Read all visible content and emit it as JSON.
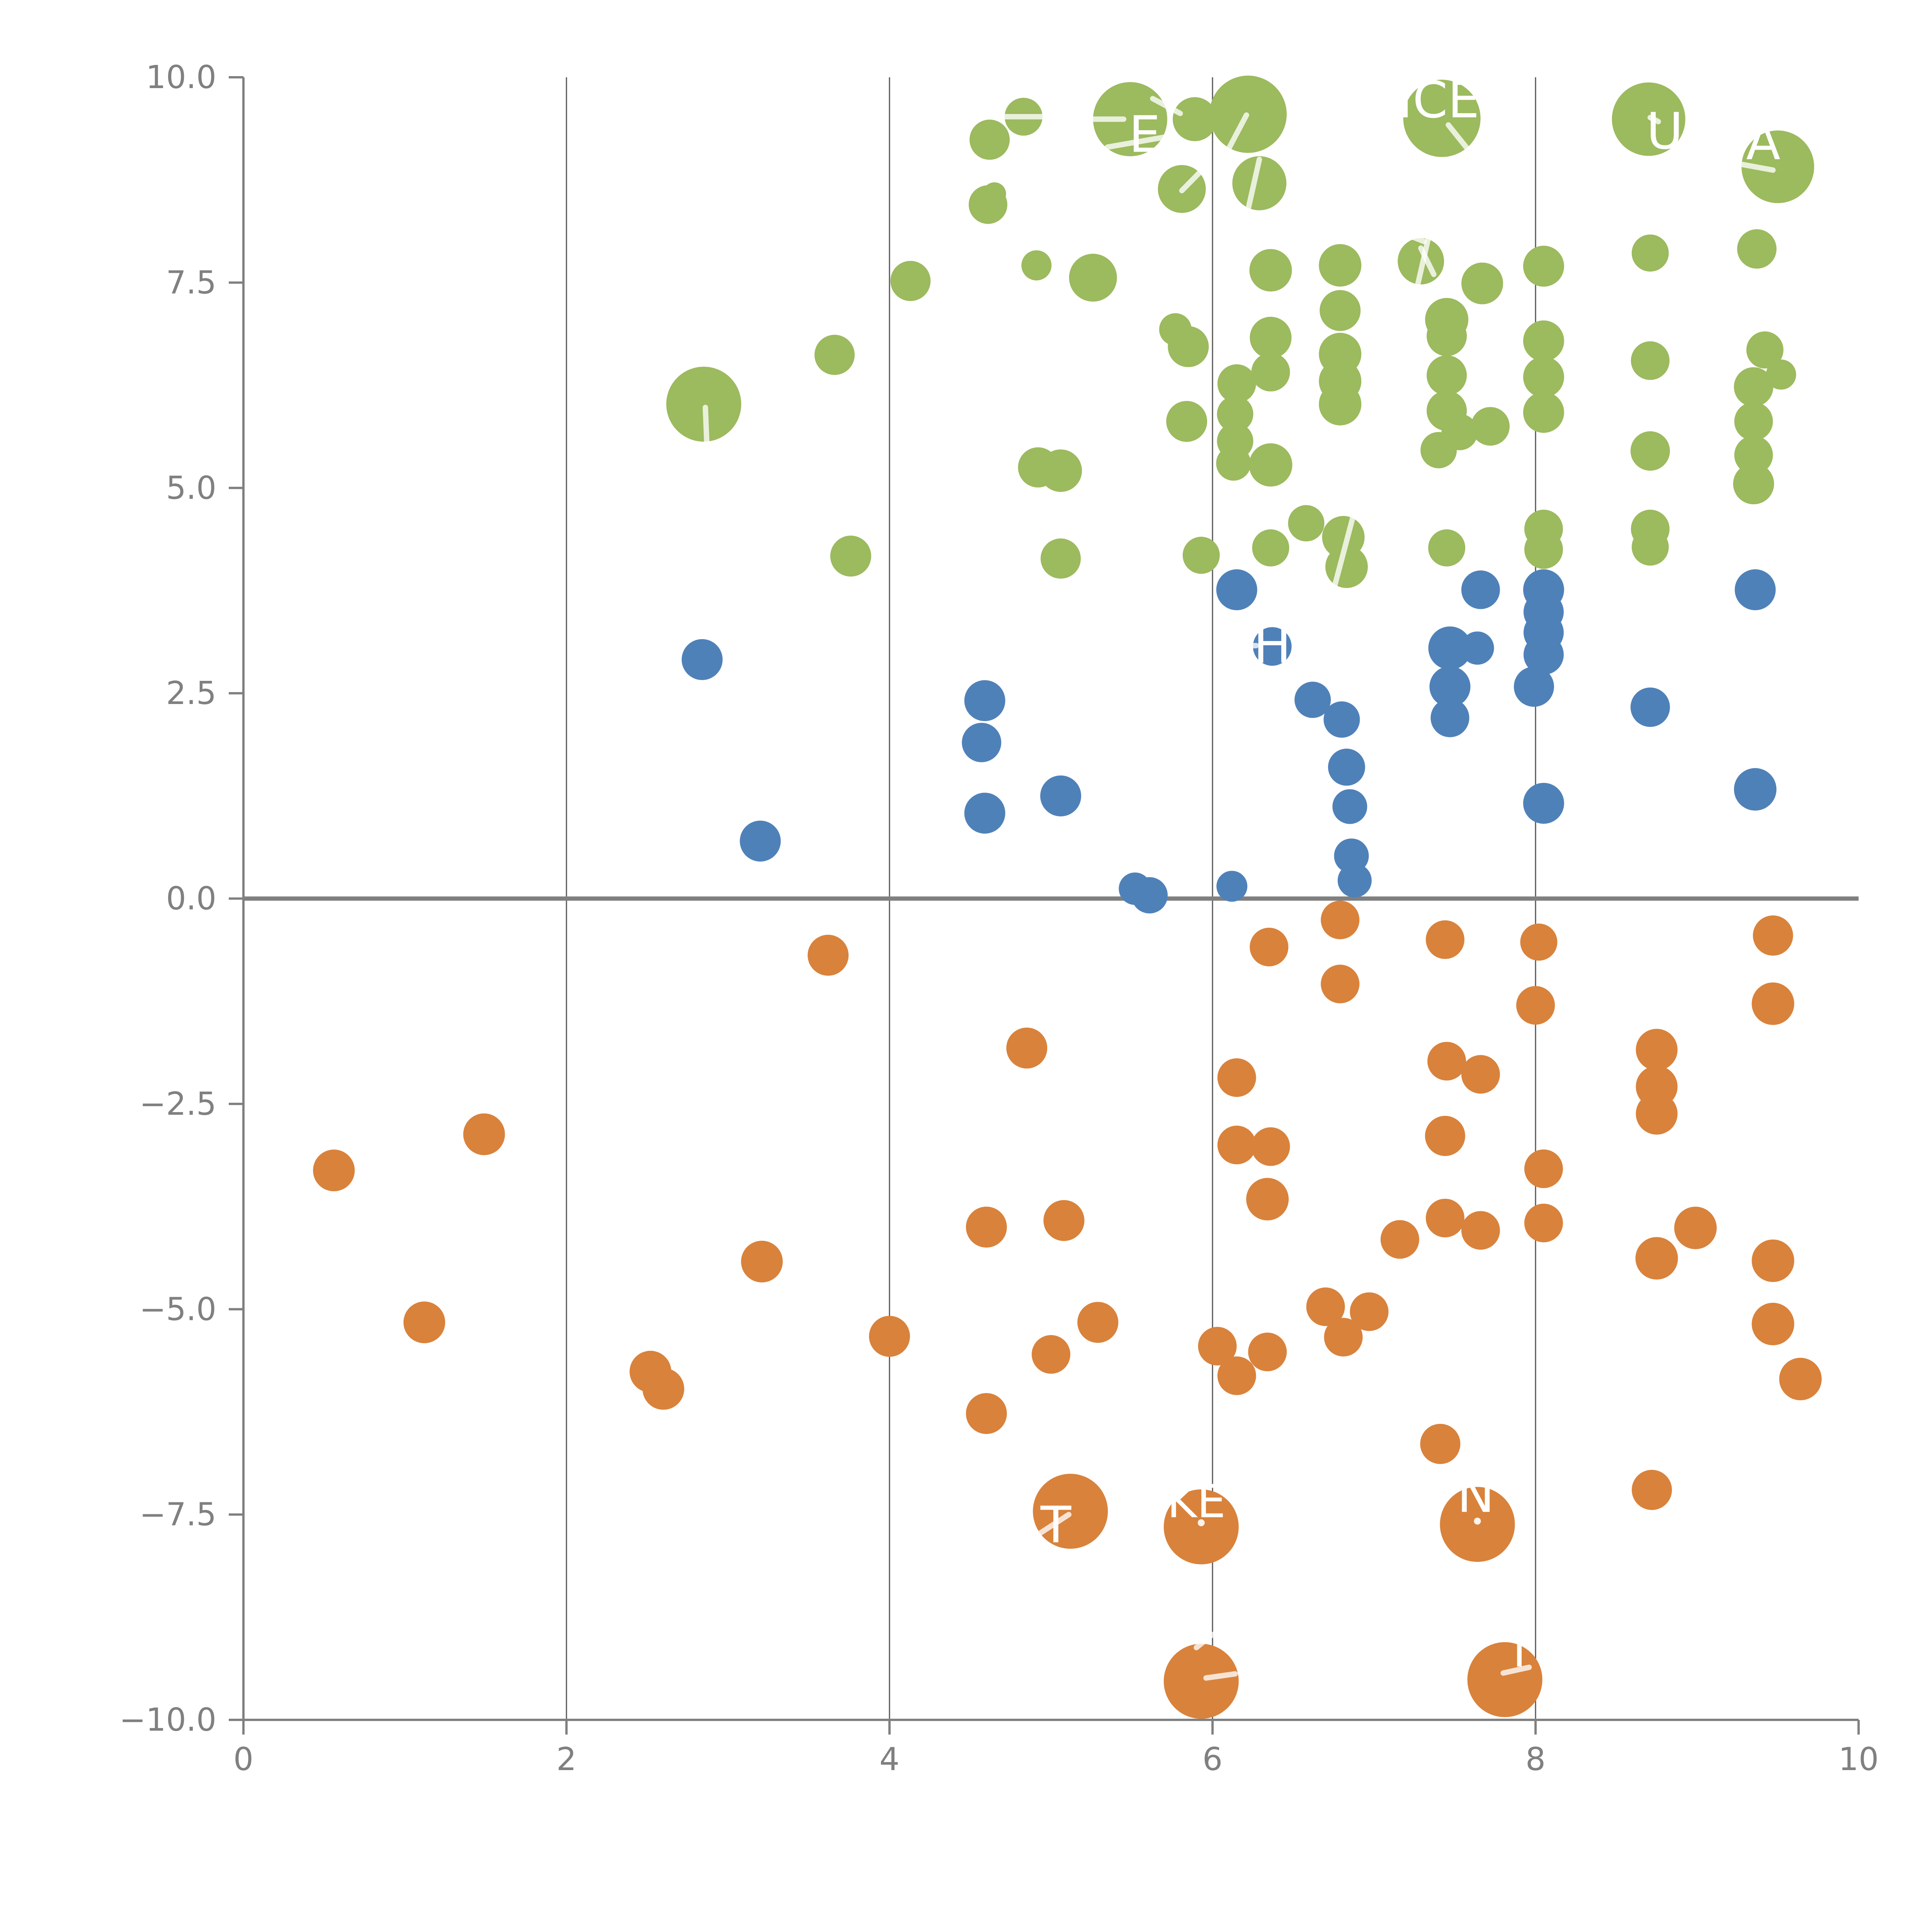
{
  "chart_data": {
    "type": "scatter",
    "title": "",
    "xlabel": "",
    "ylabel": "",
    "xlim": [
      0,
      10
    ],
    "ylim": [
      -10,
      10
    ],
    "x_ticks": [
      0,
      2,
      4,
      6,
      8,
      10
    ],
    "x_tick_labels": [
      "0",
      "2",
      "4",
      "6",
      "8",
      "10"
    ],
    "y_ticks": [
      10.0,
      7.5,
      5.0,
      2.5,
      0.0,
      -2.5,
      -5.0,
      -7.5,
      -10.0
    ],
    "y_tick_labels": [
      "10.0",
      "7.5",
      "5.0",
      "2.5",
      "0.0",
      "−2.5",
      "−5.0",
      "−7.5",
      "−10.0"
    ],
    "grid_x": [
      2,
      4,
      6,
      8
    ],
    "zero_line_y": 0,
    "legend_position": "none",
    "colors": {
      "green": "#9CBA5E",
      "blue": "#4F81B9",
      "orange": "#D9823B",
      "axis": "#808080",
      "grid": "#555555",
      "label_white": "#ffffff"
    },
    "series": [
      {
        "name": "green",
        "color": "#9CBA5E",
        "points": [
          {
            "x": 2.85,
            "y": 6.02,
            "r": 97
          },
          {
            "x": 3.66,
            "y": 6.62,
            "r": 52
          },
          {
            "x": 3.76,
            "y": 4.17,
            "r": 53
          },
          {
            "x": 4.13,
            "y": 7.52,
            "r": 52
          },
          {
            "x": 4.61,
            "y": 8.45,
            "r": 50
          },
          {
            "x": 4.62,
            "y": 9.24,
            "r": 52
          },
          {
            "x": 4.83,
            "y": 9.52,
            "r": 49
          },
          {
            "x": 4.65,
            "y": 8.58,
            "r": 30
          },
          {
            "x": 4.91,
            "y": 7.71,
            "r": 39
          },
          {
            "x": 5.26,
            "y": 7.56,
            "r": 62
          },
          {
            "x": 4.92,
            "y": 5.25,
            "r": 52
          },
          {
            "x": 5.06,
            "y": 5.21,
            "r": 55
          },
          {
            "x": 5.06,
            "y": 4.14,
            "r": 52
          },
          {
            "x": 5.49,
            "y": 9.49,
            "r": 96
          },
          {
            "x": 5.89,
            "y": 9.49,
            "r": 57
          },
          {
            "x": 5.81,
            "y": 8.64,
            "r": 62
          },
          {
            "x": 5.77,
            "y": 6.93,
            "r": 42
          },
          {
            "x": 5.84,
            "y": 5.81,
            "r": 53
          },
          {
            "x": 5.85,
            "y": 6.72,
            "r": 53
          },
          {
            "x": 5.93,
            "y": 4.18,
            "r": 48
          },
          {
            "x": 6.22,
            "y": 9.55,
            "r": 100
          },
          {
            "x": 6.29,
            "y": 8.71,
            "r": 70
          },
          {
            "x": 6.13,
            "y": 5.3,
            "r": 45
          },
          {
            "x": 6.14,
            "y": 5.9,
            "r": 47
          },
          {
            "x": 6.14,
            "y": 5.57,
            "r": 47
          },
          {
            "x": 6.15,
            "y": 6.27,
            "r": 50
          },
          {
            "x": 6.36,
            "y": 7.65,
            "r": 55
          },
          {
            "x": 6.36,
            "y": 6.83,
            "r": 54
          },
          {
            "x": 6.36,
            "y": 6.41,
            "r": 50
          },
          {
            "x": 6.36,
            "y": 5.28,
            "r": 56
          },
          {
            "x": 6.36,
            "y": 4.27,
            "r": 48
          },
          {
            "x": 6.58,
            "y": 4.57,
            "r": 47
          },
          {
            "x": 6.79,
            "y": 7.71,
            "r": 55
          },
          {
            "x": 6.79,
            "y": 7.16,
            "r": 53
          },
          {
            "x": 6.79,
            "y": 6.63,
            "r": 55
          },
          {
            "x": 6.79,
            "y": 6.3,
            "r": 55
          },
          {
            "x": 6.79,
            "y": 6.02,
            "r": 55
          },
          {
            "x": 6.81,
            "y": 4.4,
            "r": 55
          },
          {
            "x": 6.83,
            "y": 4.04,
            "r": 55
          },
          {
            "x": 7.29,
            "y": 7.76,
            "r": 60
          },
          {
            "x": 7.42,
            "y": 9.5,
            "r": 100
          },
          {
            "x": 7.45,
            "y": 7.05,
            "r": 56
          },
          {
            "x": 7.45,
            "y": 6.85,
            "r": 52
          },
          {
            "x": 7.45,
            "y": 6.37,
            "r": 52
          },
          {
            "x": 7.45,
            "y": 5.94,
            "r": 52
          },
          {
            "x": 7.45,
            "y": 4.27,
            "r": 48
          },
          {
            "x": 7.4,
            "y": 5.46,
            "r": 47
          },
          {
            "x": 7.53,
            "y": 5.68,
            "r": 47
          },
          {
            "x": 7.67,
            "y": 7.49,
            "r": 54
          },
          {
            "x": 7.72,
            "y": 5.75,
            "r": 50
          },
          {
            "x": 8.05,
            "y": 7.7,
            "r": 53
          },
          {
            "x": 8.05,
            "y": 6.79,
            "r": 53
          },
          {
            "x": 8.05,
            "y": 6.35,
            "r": 53
          },
          {
            "x": 8.05,
            "y": 5.92,
            "r": 53
          },
          {
            "x": 8.05,
            "y": 4.5,
            "r": 50
          },
          {
            "x": 8.05,
            "y": 4.25,
            "r": 50
          },
          {
            "x": 8.7,
            "y": 9.49,
            "r": 95
          },
          {
            "x": 8.71,
            "y": 7.86,
            "r": 48
          },
          {
            "x": 8.71,
            "y": 6.55,
            "r": 50
          },
          {
            "x": 8.71,
            "y": 5.45,
            "r": 51
          },
          {
            "x": 8.71,
            "y": 4.5,
            "r": 50
          },
          {
            "x": 8.71,
            "y": 4.28,
            "r": 48
          },
          {
            "x": 9.37,
            "y": 7.91,
            "r": 51
          },
          {
            "x": 9.42,
            "y": 6.68,
            "r": 48
          },
          {
            "x": 9.35,
            "y": 6.23,
            "r": 51
          },
          {
            "x": 9.35,
            "y": 5.81,
            "r": 50
          },
          {
            "x": 9.35,
            "y": 5.4,
            "r": 50
          },
          {
            "x": 9.35,
            "y": 5.05,
            "r": 53
          },
          {
            "x": 9.52,
            "y": 6.38,
            "r": 39
          },
          {
            "x": 9.5,
            "y": 8.91,
            "r": 94
          }
        ]
      },
      {
        "name": "blue",
        "color": "#4F81B9",
        "points": [
          {
            "x": 2.84,
            "y": 2.91,
            "r": 53
          },
          {
            "x": 3.2,
            "y": 0.7,
            "r": 53
          },
          {
            "x": 4.59,
            "y": 2.41,
            "r": 53
          },
          {
            "x": 4.57,
            "y": 1.9,
            "r": 51
          },
          {
            "x": 4.59,
            "y": 1.04,
            "r": 53
          },
          {
            "x": 5.06,
            "y": 1.25,
            "r": 53
          },
          {
            "x": 5.52,
            "y": 0.12,
            "r": 42
          },
          {
            "x": 5.61,
            "y": 0.04,
            "r": 47
          },
          {
            "x": 6.12,
            "y": 0.15,
            "r": 40
          },
          {
            "x": 6.15,
            "y": 3.76,
            "r": 53
          },
          {
            "x": 6.37,
            "y": 3.07,
            "r": 50
          },
          {
            "x": 6.62,
            "y": 2.42,
            "r": 47
          },
          {
            "x": 6.8,
            "y": 2.18,
            "r": 47
          },
          {
            "x": 6.83,
            "y": 1.6,
            "r": 48
          },
          {
            "x": 6.85,
            "y": 1.12,
            "r": 45
          },
          {
            "x": 6.86,
            "y": 0.52,
            "r": 45
          },
          {
            "x": 6.88,
            "y": 0.22,
            "r": 44
          },
          {
            "x": 7.47,
            "y": 3.05,
            "r": 56
          },
          {
            "x": 7.64,
            "y": 3.05,
            "r": 43
          },
          {
            "x": 7.66,
            "y": 3.76,
            "r": 50
          },
          {
            "x": 7.47,
            "y": 2.58,
            "r": 53
          },
          {
            "x": 7.47,
            "y": 2.2,
            "r": 50
          },
          {
            "x": 8.05,
            "y": 3.76,
            "r": 53
          },
          {
            "x": 8.05,
            "y": 3.49,
            "r": 52
          },
          {
            "x": 8.05,
            "y": 3.24,
            "r": 52
          },
          {
            "x": 8.05,
            "y": 2.97,
            "r": 52
          },
          {
            "x": 7.99,
            "y": 2.58,
            "r": 52
          },
          {
            "x": 8.05,
            "y": 1.16,
            "r": 53
          },
          {
            "x": 8.71,
            "y": 2.33,
            "r": 51
          },
          {
            "x": 9.36,
            "y": 3.76,
            "r": 53
          },
          {
            "x": 9.36,
            "y": 1.33,
            "r": 55
          }
        ]
      },
      {
        "name": "orange",
        "color": "#D9823B",
        "points": [
          {
            "x": 0.56,
            "y": -3.31,
            "r": 54
          },
          {
            "x": 1.12,
            "y": -5.16,
            "r": 54
          },
          {
            "x": 1.49,
            "y": -2.87,
            "r": 54
          },
          {
            "x": 2.52,
            "y": -5.76,
            "r": 54
          },
          {
            "x": 2.6,
            "y": -5.97,
            "r": 54
          },
          {
            "x": 3.21,
            "y": -4.42,
            "r": 54
          },
          {
            "x": 3.62,
            "y": -0.69,
            "r": 53
          },
          {
            "x": 4.0,
            "y": -5.33,
            "r": 53
          },
          {
            "x": 4.6,
            "y": -6.27,
            "r": 53
          },
          {
            "x": 4.6,
            "y": -4.0,
            "r": 53
          },
          {
            "x": 4.85,
            "y": -1.82,
            "r": 53
          },
          {
            "x": 5.08,
            "y": -3.92,
            "r": 53
          },
          {
            "x": 5.0,
            "y": -5.55,
            "r": 50
          },
          {
            "x": 5.12,
            "y": -7.46,
            "r": 97
          },
          {
            "x": 5.29,
            "y": -5.16,
            "r": 53
          },
          {
            "x": 5.93,
            "y": -7.65,
            "r": 97
          },
          {
            "x": 5.93,
            "y": -9.53,
            "r": 97
          },
          {
            "x": 6.03,
            "y": -5.45,
            "r": 50
          },
          {
            "x": 6.15,
            "y": -5.81,
            "r": 50
          },
          {
            "x": 6.34,
            "y": -5.52,
            "r": 50
          },
          {
            "x": 6.15,
            "y": -2.18,
            "r": 50
          },
          {
            "x": 6.15,
            "y": -3.0,
            "r": 50
          },
          {
            "x": 6.36,
            "y": -3.02,
            "r": 50
          },
          {
            "x": 6.34,
            "y": -3.66,
            "r": 55
          },
          {
            "x": 6.35,
            "y": -0.59,
            "r": 50
          },
          {
            "x": 6.7,
            "y": -4.97,
            "r": 50
          },
          {
            "x": 6.81,
            "y": -5.34,
            "r": 50
          },
          {
            "x": 6.97,
            "y": -5.03,
            "r": 50
          },
          {
            "x": 6.79,
            "y": -0.26,
            "r": 50
          },
          {
            "x": 6.79,
            "y": -1.04,
            "r": 50
          },
          {
            "x": 7.16,
            "y": -4.15,
            "r": 50
          },
          {
            "x": 7.41,
            "y": -6.64,
            "r": 52
          },
          {
            "x": 7.44,
            "y": -0.5,
            "r": 50
          },
          {
            "x": 7.44,
            "y": -2.89,
            "r": 52
          },
          {
            "x": 7.44,
            "y": -3.89,
            "r": 50
          },
          {
            "x": 7.45,
            "y": -1.98,
            "r": 50
          },
          {
            "x": 7.66,
            "y": -2.14,
            "r": 50
          },
          {
            "x": 7.66,
            "y": -4.04,
            "r": 50
          },
          {
            "x": 7.64,
            "y": -7.62,
            "r": 97
          },
          {
            "x": 7.81,
            "y": -9.51,
            "r": 97
          },
          {
            "x": 8.0,
            "y": -1.3,
            "r": 50
          },
          {
            "x": 8.02,
            "y": -0.53,
            "r": 48
          },
          {
            "x": 8.05,
            "y": -3.29,
            "r": 50
          },
          {
            "x": 8.05,
            "y": -3.95,
            "r": 50
          },
          {
            "x": 8.72,
            "y": -7.2,
            "r": 52
          },
          {
            "x": 8.75,
            "y": -1.84,
            "r": 54
          },
          {
            "x": 8.75,
            "y": -2.29,
            "r": 54
          },
          {
            "x": 8.75,
            "y": -2.62,
            "r": 54
          },
          {
            "x": 8.75,
            "y": -4.38,
            "r": 55
          },
          {
            "x": 8.99,
            "y": -4.01,
            "r": 55
          },
          {
            "x": 9.47,
            "y": -0.45,
            "r": 52
          },
          {
            "x": 9.47,
            "y": -1.28,
            "r": 55
          },
          {
            "x": 9.47,
            "y": -4.41,
            "r": 55
          },
          {
            "x": 9.47,
            "y": -5.18,
            "r": 55
          },
          {
            "x": 9.64,
            "y": -5.85,
            "r": 55
          }
        ]
      }
    ],
    "annotations": {
      "text_fragments": [
        {
          "text": "E",
          "x": 5.58,
          "y": 9.26,
          "size": 130
        },
        {
          "text": "ICE",
          "x": 7.4,
          "y": 9.68,
          "size": 130
        },
        {
          "text": "U",
          "x": 8.8,
          "y": 9.3,
          "size": 130
        },
        {
          "text": "A",
          "x": 9.41,
          "y": 9.17,
          "size": 130
        },
        {
          "text": "H",
          "x": 6.37,
          "y": 3.04,
          "size": 130
        },
        {
          "text": "T",
          "x": 5.03,
          "y": -7.67,
          "size": 130
        },
        {
          "text": "KE",
          "x": 5.9,
          "y": -7.38,
          "size": 118
        },
        {
          "text": "N",
          "x": 7.63,
          "y": -7.3,
          "size": 130
        },
        {
          "text": "I",
          "x": 7.9,
          "y": -9.2,
          "size": 118
        }
      ],
      "leader_lines": [
        {
          "x1": 5.12,
          "y1": 9.49,
          "x2": 5.45,
          "y2": 9.49
        },
        {
          "x1": 5.63,
          "y1": 9.74,
          "x2": 5.8,
          "y2": 9.56
        },
        {
          "x1": 5.35,
          "y1": 9.15,
          "x2": 5.7,
          "y2": 9.27
        },
        {
          "x1": 4.7,
          "y1": 9.52,
          "x2": 5.16,
          "y2": 9.52
        },
        {
          "x1": 6.21,
          "y1": 9.54,
          "x2": 6.06,
          "y2": 8.98
        },
        {
          "x1": 6.29,
          "y1": 9.0,
          "x2": 6.22,
          "y2": 8.39
        },
        {
          "x1": 5.81,
          "y1": 8.62,
          "x2": 5.93,
          "y2": 8.86
        },
        {
          "x1": 7.46,
          "y1": 9.42,
          "x2": 7.57,
          "y2": 9.15
        },
        {
          "x1": 7.41,
          "y1": 8.68,
          "x2": 7.27,
          "y2": 7.47
        },
        {
          "x1": 7.12,
          "y1": 8.15,
          "x2": 7.31,
          "y2": 8.0
        },
        {
          "x1": 8.03,
          "y1": 8.73,
          "x2": 8.7,
          "y2": 8.73
        },
        {
          "x1": 8.71,
          "y1": 9.51,
          "x2": 8.76,
          "y2": 9.46
        },
        {
          "x1": 9.22,
          "y1": 8.96,
          "x2": 9.47,
          "y2": 8.87
        },
        {
          "x1": 2.86,
          "y1": 5.98,
          "x2": 2.87,
          "y2": 5.49
        },
        {
          "x1": 6.89,
          "y1": 4.8,
          "x2": 6.75,
          "y2": 3.76
        },
        {
          "x1": 7.29,
          "y1": 7.92,
          "x2": 7.37,
          "y2": 7.6
        },
        {
          "x1": 6.07,
          "y1": 3.08,
          "x2": 6.27,
          "y2": 3.08
        },
        {
          "x1": 4.93,
          "y1": -7.73,
          "x2": 5.11,
          "y2": -7.5
        },
        {
          "x1": 5.9,
          "y1": -9.12,
          "x2": 6.0,
          "y2": -8.96
        },
        {
          "x1": 5.96,
          "y1": -9.49,
          "x2": 6.14,
          "y2": -9.44
        },
        {
          "x1": 7.8,
          "y1": -9.43,
          "x2": 7.96,
          "y2": -9.36
        }
      ],
      "white_dots": [
        {
          "x": 5.93,
          "y": -7.6
        },
        {
          "x": 7.64,
          "y": -7.58
        }
      ]
    }
  }
}
